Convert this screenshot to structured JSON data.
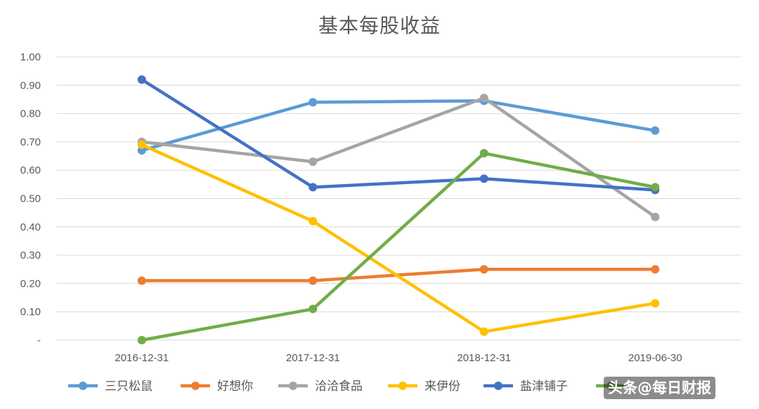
{
  "chart_data": {
    "type": "line",
    "title": "基本每股收益",
    "categories": [
      "2016-12-31",
      "2017-12-31",
      "2018-12-31",
      "2019-06-30"
    ],
    "y_tick_labels": [
      "-",
      "0.10",
      "0.20",
      "0.30",
      "0.40",
      "0.50",
      "0.60",
      "0.70",
      "0.80",
      "0.90",
      "1.00"
    ],
    "ylim": [
      0,
      1.0
    ],
    "grid": true,
    "legend_position": "bottom",
    "series": [
      {
        "name": "三只松鼠",
        "color": "#5b9bd5",
        "values": [
          0.67,
          0.84,
          0.845,
          0.74
        ]
      },
      {
        "name": "好想你",
        "color": "#ed7d31",
        "values": [
          0.21,
          0.21,
          0.25,
          0.25
        ]
      },
      {
        "name": "洽洽食品",
        "color": "#a5a5a5",
        "values": [
          0.7,
          0.63,
          0.855,
          0.435
        ]
      },
      {
        "name": "来伊份",
        "color": "#ffc000",
        "values": [
          0.69,
          0.42,
          0.03,
          0.13
        ]
      },
      {
        "name": "盐津铺子",
        "color": "#4472c4",
        "values": [
          0.92,
          0.54,
          0.57,
          0.53
        ]
      },
      {
        "name": "",
        "color": "#70ad47",
        "values": [
          0.0,
          0.11,
          0.66,
          0.54
        ]
      }
    ]
  },
  "watermark": {
    "prefix": "头条",
    "handle": "@每日财报"
  }
}
